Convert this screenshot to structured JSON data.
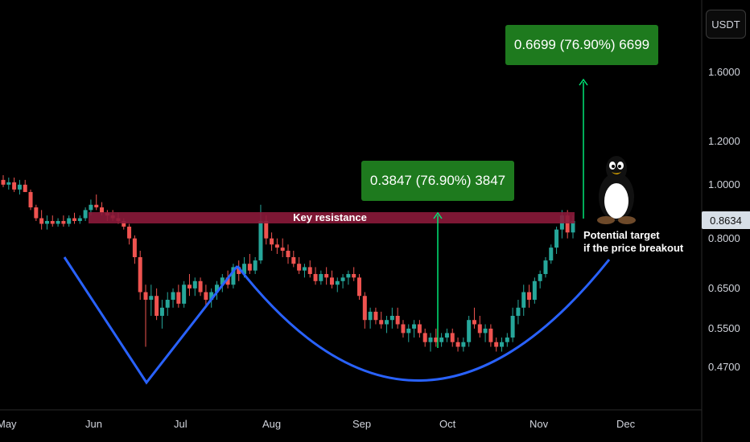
{
  "chart_data": {
    "type": "candlestick",
    "instrument_quote": "USDT",
    "last_price": "0.8634",
    "y_scale": "log",
    "y_ticks": [
      "1.6000",
      "1.2000",
      "1.0000",
      "0.8000",
      "0.6500",
      "0.5500",
      "0.4700"
    ],
    "x_ticks": [
      "May",
      "Jun",
      "Jul",
      "Aug",
      "Sep",
      "Oct",
      "Nov",
      "Dec"
    ],
    "key_resistance": {
      "label": "Key resistance",
      "low": 0.842,
      "high": 0.885,
      "color": "#8b1a3a"
    },
    "targets": [
      {
        "label": "0.3847 (76.90%) 3847",
        "from": 0.5,
        "to": 0.8847
      },
      {
        "label": "0.6699 (76.90%) 6699",
        "from": 0.871,
        "to": 1.54
      }
    ],
    "annotation": [
      "Potential target",
      "if the price breakout"
    ],
    "pattern": "cup-and-handle (W bottom + rounded bottom)",
    "candle_colors": {
      "up": "#26a69a",
      "down": "#ef5350"
    },
    "line_color": "#2962ff",
    "arrow_color": "#00e676",
    "candles": [
      [
        1.02,
        1.04,
        0.99,
        1.0
      ],
      [
        1.0,
        1.03,
        0.98,
        1.01
      ],
      [
        1.01,
        1.03,
        0.97,
        0.98
      ],
      [
        0.98,
        1.02,
        0.96,
        1.0
      ],
      [
        1.0,
        1.02,
        0.97,
        0.97
      ],
      [
        0.97,
        0.98,
        0.9,
        0.91
      ],
      [
        0.91,
        0.92,
        0.86,
        0.87
      ],
      [
        0.87,
        0.9,
        0.83,
        0.85
      ],
      [
        0.85,
        0.88,
        0.83,
        0.86
      ],
      [
        0.86,
        0.88,
        0.84,
        0.85
      ],
      [
        0.85,
        0.87,
        0.84,
        0.86
      ],
      [
        0.86,
        0.88,
        0.84,
        0.85
      ],
      [
        0.85,
        0.88,
        0.84,
        0.87
      ],
      [
        0.87,
        0.89,
        0.85,
        0.86
      ],
      [
        0.86,
        0.88,
        0.85,
        0.87
      ],
      [
        0.87,
        0.91,
        0.86,
        0.9
      ],
      [
        0.9,
        0.94,
        0.88,
        0.92
      ],
      [
        0.92,
        0.96,
        0.9,
        0.91
      ],
      [
        0.91,
        0.93,
        0.88,
        0.89
      ],
      [
        0.89,
        0.9,
        0.86,
        0.88
      ],
      [
        0.88,
        0.9,
        0.86,
        0.87
      ],
      [
        0.87,
        0.89,
        0.85,
        0.86
      ],
      [
        0.86,
        0.87,
        0.83,
        0.84
      ],
      [
        0.84,
        0.85,
        0.78,
        0.8
      ],
      [
        0.8,
        0.81,
        0.72,
        0.74
      ],
      [
        0.74,
        0.76,
        0.62,
        0.64
      ],
      [
        0.64,
        0.66,
        0.51,
        0.62
      ],
      [
        0.62,
        0.66,
        0.58,
        0.63
      ],
      [
        0.63,
        0.65,
        0.57,
        0.58
      ],
      [
        0.58,
        0.62,
        0.55,
        0.6
      ],
      [
        0.6,
        0.64,
        0.58,
        0.62
      ],
      [
        0.62,
        0.65,
        0.6,
        0.64
      ],
      [
        0.64,
        0.66,
        0.6,
        0.61
      ],
      [
        0.61,
        0.67,
        0.6,
        0.66
      ],
      [
        0.66,
        0.69,
        0.63,
        0.65
      ],
      [
        0.65,
        0.68,
        0.63,
        0.67
      ],
      [
        0.67,
        0.68,
        0.63,
        0.64
      ],
      [
        0.64,
        0.66,
        0.6,
        0.62
      ],
      [
        0.62,
        0.65,
        0.6,
        0.64
      ],
      [
        0.64,
        0.67,
        0.62,
        0.66
      ],
      [
        0.66,
        0.69,
        0.64,
        0.68
      ],
      [
        0.68,
        0.7,
        0.65,
        0.66
      ],
      [
        0.66,
        0.72,
        0.65,
        0.71
      ],
      [
        0.71,
        0.73,
        0.67,
        0.69
      ],
      [
        0.69,
        0.74,
        0.68,
        0.72
      ],
      [
        0.72,
        0.75,
        0.69,
        0.7
      ],
      [
        0.7,
        0.74,
        0.69,
        0.73
      ],
      [
        0.73,
        0.92,
        0.72,
        0.86
      ],
      [
        0.86,
        0.88,
        0.78,
        0.8
      ],
      [
        0.8,
        0.82,
        0.76,
        0.78
      ],
      [
        0.78,
        0.8,
        0.75,
        0.77
      ],
      [
        0.77,
        0.8,
        0.74,
        0.76
      ],
      [
        0.76,
        0.78,
        0.72,
        0.74
      ],
      [
        0.74,
        0.76,
        0.71,
        0.72
      ],
      [
        0.72,
        0.74,
        0.69,
        0.7
      ],
      [
        0.7,
        0.72,
        0.68,
        0.71
      ],
      [
        0.71,
        0.73,
        0.68,
        0.69
      ],
      [
        0.69,
        0.71,
        0.66,
        0.67
      ],
      [
        0.67,
        0.7,
        0.66,
        0.69
      ],
      [
        0.69,
        0.71,
        0.66,
        0.68
      ],
      [
        0.68,
        0.7,
        0.65,
        0.66
      ],
      [
        0.66,
        0.68,
        0.64,
        0.67
      ],
      [
        0.67,
        0.69,
        0.65,
        0.68
      ],
      [
        0.68,
        0.7,
        0.66,
        0.69
      ],
      [
        0.69,
        0.71,
        0.67,
        0.68
      ],
      [
        0.68,
        0.69,
        0.62,
        0.63
      ],
      [
        0.63,
        0.64,
        0.55,
        0.57
      ],
      [
        0.57,
        0.6,
        0.55,
        0.59
      ],
      [
        0.59,
        0.6,
        0.56,
        0.57
      ],
      [
        0.57,
        0.59,
        0.55,
        0.56
      ],
      [
        0.56,
        0.58,
        0.54,
        0.57
      ],
      [
        0.57,
        0.6,
        0.55,
        0.58
      ],
      [
        0.58,
        0.6,
        0.55,
        0.56
      ],
      [
        0.56,
        0.57,
        0.53,
        0.54
      ],
      [
        0.54,
        0.56,
        0.52,
        0.55
      ],
      [
        0.55,
        0.57,
        0.53,
        0.56
      ],
      [
        0.56,
        0.57,
        0.53,
        0.54
      ],
      [
        0.54,
        0.55,
        0.51,
        0.52
      ],
      [
        0.52,
        0.54,
        0.5,
        0.53
      ],
      [
        0.53,
        0.55,
        0.51,
        0.52
      ],
      [
        0.52,
        0.54,
        0.51,
        0.53
      ],
      [
        0.53,
        0.55,
        0.52,
        0.54
      ],
      [
        0.54,
        0.55,
        0.51,
        0.52
      ],
      [
        0.52,
        0.53,
        0.5,
        0.51
      ],
      [
        0.51,
        0.53,
        0.5,
        0.52
      ],
      [
        0.52,
        0.58,
        0.51,
        0.57
      ],
      [
        0.57,
        0.6,
        0.55,
        0.56
      ],
      [
        0.56,
        0.58,
        0.53,
        0.54
      ],
      [
        0.54,
        0.56,
        0.52,
        0.55
      ],
      [
        0.55,
        0.56,
        0.51,
        0.52
      ],
      [
        0.52,
        0.53,
        0.5,
        0.51
      ],
      [
        0.51,
        0.53,
        0.5,
        0.52
      ],
      [
        0.52,
        0.54,
        0.51,
        0.53
      ],
      [
        0.53,
        0.6,
        0.52,
        0.58
      ],
      [
        0.58,
        0.62,
        0.56,
        0.6
      ],
      [
        0.6,
        0.66,
        0.58,
        0.64
      ],
      [
        0.64,
        0.66,
        0.6,
        0.62
      ],
      [
        0.62,
        0.68,
        0.61,
        0.67
      ],
      [
        0.67,
        0.7,
        0.65,
        0.69
      ],
      [
        0.69,
        0.74,
        0.68,
        0.73
      ],
      [
        0.73,
        0.78,
        0.72,
        0.77
      ],
      [
        0.77,
        0.84,
        0.75,
        0.83
      ],
      [
        0.83,
        0.9,
        0.8,
        0.88
      ],
      [
        0.88,
        0.9,
        0.8,
        0.82
      ],
      [
        0.82,
        0.88,
        0.8,
        0.86
      ]
    ]
  }
}
